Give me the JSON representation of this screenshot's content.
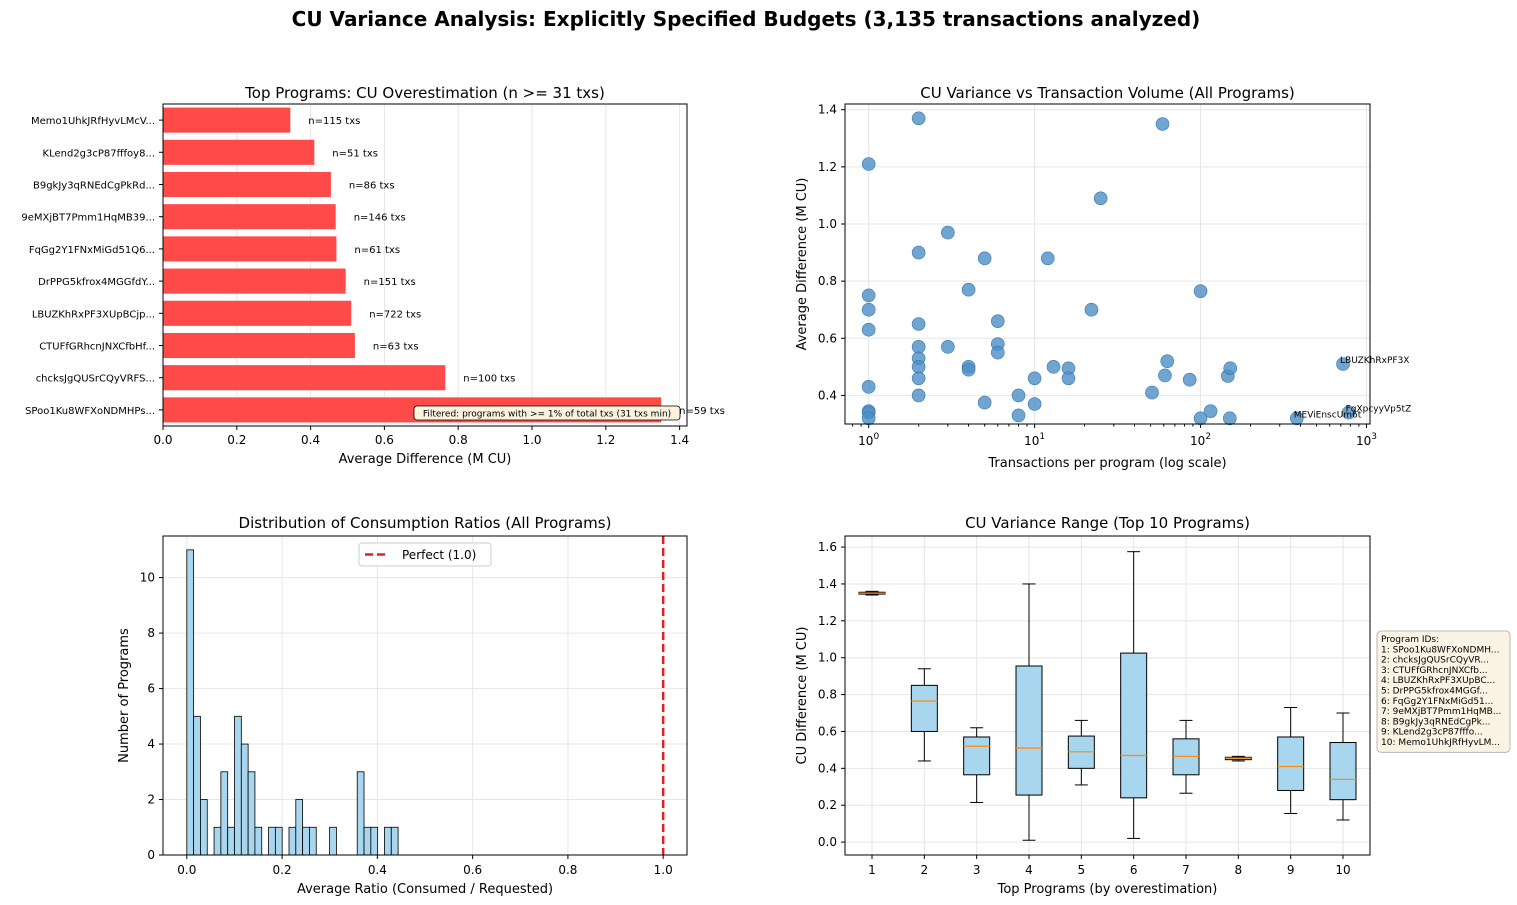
{
  "suptitle": "CU Variance Analysis: Explicitly Specified Budgets (3,135 transactions analyzed)",
  "chart_data": [
    {
      "type": "bar",
      "orientation": "horizontal",
      "title": "Top Programs: CU Overestimation (n >= 31 txs)",
      "xlabel": "Average Difference (M CU)",
      "ylabel": "",
      "xlim": [
        0,
        1.42
      ],
      "xticks": [
        0.0,
        0.2,
        0.4,
        0.6,
        0.8,
        1.0,
        1.2,
        1.4
      ],
      "xtick_labels": [
        "0.0",
        "0.2",
        "0.4",
        "0.6",
        "0.8",
        "1.0",
        "1.2",
        "1.4"
      ],
      "grid": true,
      "color": "#ff4a4a",
      "categories": [
        "Memo1UhkJRfHyvLMcV...",
        "KLend2g3cP87fffoy8...",
        "B9gkJy3qRNEdCgPkRd...",
        "9eMXjBT7Pmm1HqMB39...",
        "FqGg2Y1FNxMiGd51Q6...",
        "DrPPG5kfrox4MGGfdY...",
        "LBUZKhRxPF3XUpBCjp...",
        "CTUFfGRhcnJNXCfbHf...",
        "chcksJgQUSrCQyVRFS...",
        "SPoo1Ku8WFXoNDMHPs..."
      ],
      "values": [
        0.345,
        0.41,
        0.455,
        0.468,
        0.47,
        0.495,
        0.51,
        0.52,
        0.765,
        1.35
      ],
      "bar_labels": [
        "n=115 txs",
        "n=51 txs",
        "n=86 txs",
        "n=146 txs",
        "n=61 txs",
        "n=151 txs",
        "n=722 txs",
        "n=63 txs",
        "n=100 txs",
        "n=59 txs"
      ],
      "annotation": "Filtered: programs with >= 1% of total txs (31 txs min)"
    },
    {
      "type": "scatter",
      "title": "CU Variance vs Transaction Volume (All Programs)",
      "xlabel": "Transactions per program (log scale)",
      "ylabel": "Average Difference (M CU)",
      "xscale": "log",
      "xlim": [
        0.72,
        1050
      ],
      "ylim": [
        0.3,
        1.42
      ],
      "xticks": [
        1,
        10,
        100,
        1000
      ],
      "xtick_labels": [
        {
          "base": "10",
          "exp": "0"
        },
        {
          "base": "10",
          "exp": "1"
        },
        {
          "base": "10",
          "exp": "2"
        },
        {
          "base": "10",
          "exp": "3"
        }
      ],
      "yticks": [
        0.4,
        0.6,
        0.8,
        1.0,
        1.2,
        1.4
      ],
      "ytick_labels": [
        "0.4",
        "0.6",
        "0.8",
        "1.0",
        "1.2",
        "1.4"
      ],
      "grid": true,
      "color": "#4c8fc7",
      "points": [
        {
          "x": 1,
          "y": 1.21
        },
        {
          "x": 1,
          "y": 0.75
        },
        {
          "x": 1,
          "y": 0.7
        },
        {
          "x": 1,
          "y": 0.63
        },
        {
          "x": 1,
          "y": 0.43
        },
        {
          "x": 1,
          "y": 0.345
        },
        {
          "x": 1,
          "y": 0.34
        },
        {
          "x": 1,
          "y": 0.32
        },
        {
          "x": 2,
          "y": 1.37
        },
        {
          "x": 2,
          "y": 0.9
        },
        {
          "x": 2,
          "y": 0.65
        },
        {
          "x": 2,
          "y": 0.57
        },
        {
          "x": 2,
          "y": 0.53
        },
        {
          "x": 2,
          "y": 0.5
        },
        {
          "x": 2,
          "y": 0.46
        },
        {
          "x": 2,
          "y": 0.4
        },
        {
          "x": 3,
          "y": 0.97
        },
        {
          "x": 3,
          "y": 0.57
        },
        {
          "x": 4,
          "y": 0.77
        },
        {
          "x": 4,
          "y": 0.5
        },
        {
          "x": 4,
          "y": 0.49
        },
        {
          "x": 5,
          "y": 0.88
        },
        {
          "x": 5,
          "y": 0.375
        },
        {
          "x": 6,
          "y": 0.66
        },
        {
          "x": 6,
          "y": 0.58
        },
        {
          "x": 6,
          "y": 0.55
        },
        {
          "x": 8,
          "y": 0.4
        },
        {
          "x": 8,
          "y": 0.33
        },
        {
          "x": 10,
          "y": 0.46
        },
        {
          "x": 10,
          "y": 0.37
        },
        {
          "x": 12,
          "y": 0.88
        },
        {
          "x": 13,
          "y": 0.5
        },
        {
          "x": 16,
          "y": 0.495
        },
        {
          "x": 16,
          "y": 0.46
        },
        {
          "x": 22,
          "y": 0.7
        },
        {
          "x": 25,
          "y": 1.09
        },
        {
          "x": 51,
          "y": 0.41
        },
        {
          "x": 59,
          "y": 1.35
        },
        {
          "x": 61,
          "y": 0.47
        },
        {
          "x": 63,
          "y": 0.52
        },
        {
          "x": 86,
          "y": 0.455
        },
        {
          "x": 100,
          "y": 0.765
        },
        {
          "x": 100,
          "y": 0.32
        },
        {
          "x": 115,
          "y": 0.345
        },
        {
          "x": 146,
          "y": 0.468
        },
        {
          "x": 151,
          "y": 0.495
        },
        {
          "x": 150,
          "y": 0.32
        },
        {
          "x": 380,
          "y": 0.32
        },
        {
          "x": 722,
          "y": 0.51
        },
        {
          "x": 780,
          "y": 0.34
        }
      ],
      "point_labels": [
        {
          "x": 722,
          "y": 0.51,
          "text": "LBUZKhRxPF3X"
        },
        {
          "x": 780,
          "y": 0.34,
          "text": "FqXpcyyVp5tZ"
        },
        {
          "x": 380,
          "y": 0.32,
          "text": "MEViEnscUm6t"
        }
      ]
    },
    {
      "type": "bar",
      "subtype": "histogram",
      "title": "Distribution of Consumption Ratios (All Programs)",
      "xlabel": "Average Ratio (Consumed / Requested)",
      "ylabel": "Number of Programs",
      "xlim": [
        -0.05,
        1.05
      ],
      "ylim": [
        0,
        11.5
      ],
      "xticks": [
        0.0,
        0.2,
        0.4,
        0.6,
        0.8,
        1.0
      ],
      "xtick_labels": [
        "0.0",
        "0.2",
        "0.4",
        "0.6",
        "0.8",
        "1.0"
      ],
      "yticks": [
        0,
        2,
        4,
        6,
        8,
        10
      ],
      "ytick_labels": [
        "0",
        "2",
        "4",
        "6",
        "8",
        "10"
      ],
      "grid": true,
      "color": "#a7d6ee",
      "bin_width": 0.0143,
      "bin_starts": [
        0.0,
        0.0143,
        0.0286,
        0.0572,
        0.0715,
        0.0858,
        0.1001,
        0.1144,
        0.1287,
        0.143,
        0.1716,
        0.1859,
        0.2145,
        0.2288,
        0.2431,
        0.2574,
        0.2997,
        0.3577,
        0.372,
        0.3863,
        0.4149,
        0.4292
      ],
      "values": [
        11,
        5,
        2,
        1,
        3,
        1,
        5,
        4,
        3,
        1,
        1,
        1,
        1,
        2,
        1,
        1,
        1,
        3,
        1,
        1,
        1,
        1
      ],
      "reference_line": {
        "x": 1.0,
        "label": "Perfect (1.0)",
        "color": "#dd2222"
      },
      "legend": "top-center"
    },
    {
      "type": "box",
      "title": "CU Variance Range (Top 10 Programs)",
      "xlabel": "Top Programs (by overestimation)",
      "ylabel": "CU Difference (M CU)",
      "ylim": [
        -0.07,
        1.66
      ],
      "yticks": [
        0.0,
        0.2,
        0.4,
        0.6,
        0.8,
        1.0,
        1.2,
        1.4,
        1.6
      ],
      "ytick_labels": [
        "0.0",
        "0.2",
        "0.4",
        "0.6",
        "0.8",
        "1.0",
        "1.2",
        "1.4",
        "1.6"
      ],
      "categories": [
        "1",
        "2",
        "3",
        "4",
        "5",
        "6",
        "7",
        "8",
        "9",
        "10"
      ],
      "grid": true,
      "color": "#a7d6ee",
      "boxes": [
        {
          "whislo": 1.34,
          "q1": 1.345,
          "med": 1.35,
          "q3": 1.355,
          "whishi": 1.36
        },
        {
          "whislo": 0.44,
          "q1": 0.6,
          "med": 0.765,
          "q3": 0.85,
          "whishi": 0.94
        },
        {
          "whislo": 0.215,
          "q1": 0.365,
          "med": 0.52,
          "q3": 0.57,
          "whishi": 0.62
        },
        {
          "whislo": 0.01,
          "q1": 0.255,
          "med": 0.51,
          "q3": 0.955,
          "whishi": 1.4
        },
        {
          "whislo": 0.31,
          "q1": 0.4,
          "med": 0.49,
          "q3": 0.575,
          "whishi": 0.66
        },
        {
          "whislo": 0.02,
          "q1": 0.24,
          "med": 0.47,
          "q3": 1.025,
          "whishi": 1.575
        },
        {
          "whislo": 0.265,
          "q1": 0.365,
          "med": 0.465,
          "q3": 0.56,
          "whishi": 0.66
        },
        {
          "whislo": 0.44,
          "q1": 0.447,
          "med": 0.455,
          "q3": 0.46,
          "whishi": 0.465
        },
        {
          "whislo": 0.155,
          "q1": 0.28,
          "med": 0.41,
          "q3": 0.57,
          "whishi": 0.73
        },
        {
          "whislo": 0.12,
          "q1": 0.23,
          "med": 0.34,
          "q3": 0.54,
          "whishi": 0.7
        }
      ],
      "legend_box": {
        "title": "Program IDs:",
        "lines": [
          "1: SPoo1Ku8WFXoNDMH...",
          "2: chcksJgQUSrCQyVR...",
          "3: CTUFfGRhcnJNXCfb...",
          "4: LBUZKhRxPF3XUpBC...",
          "5: DrPPG5kfrox4MGGf...",
          "6: FqGg2Y1FNxMiGd51...",
          "7: 9eMXjBT7Pmm1HqMB...",
          "8: B9gkJy3qRNEdCgPk...",
          "9: KLend2g3cP87fffo...",
          "10: Memo1UhkJRfHyvLM..."
        ]
      }
    }
  ]
}
